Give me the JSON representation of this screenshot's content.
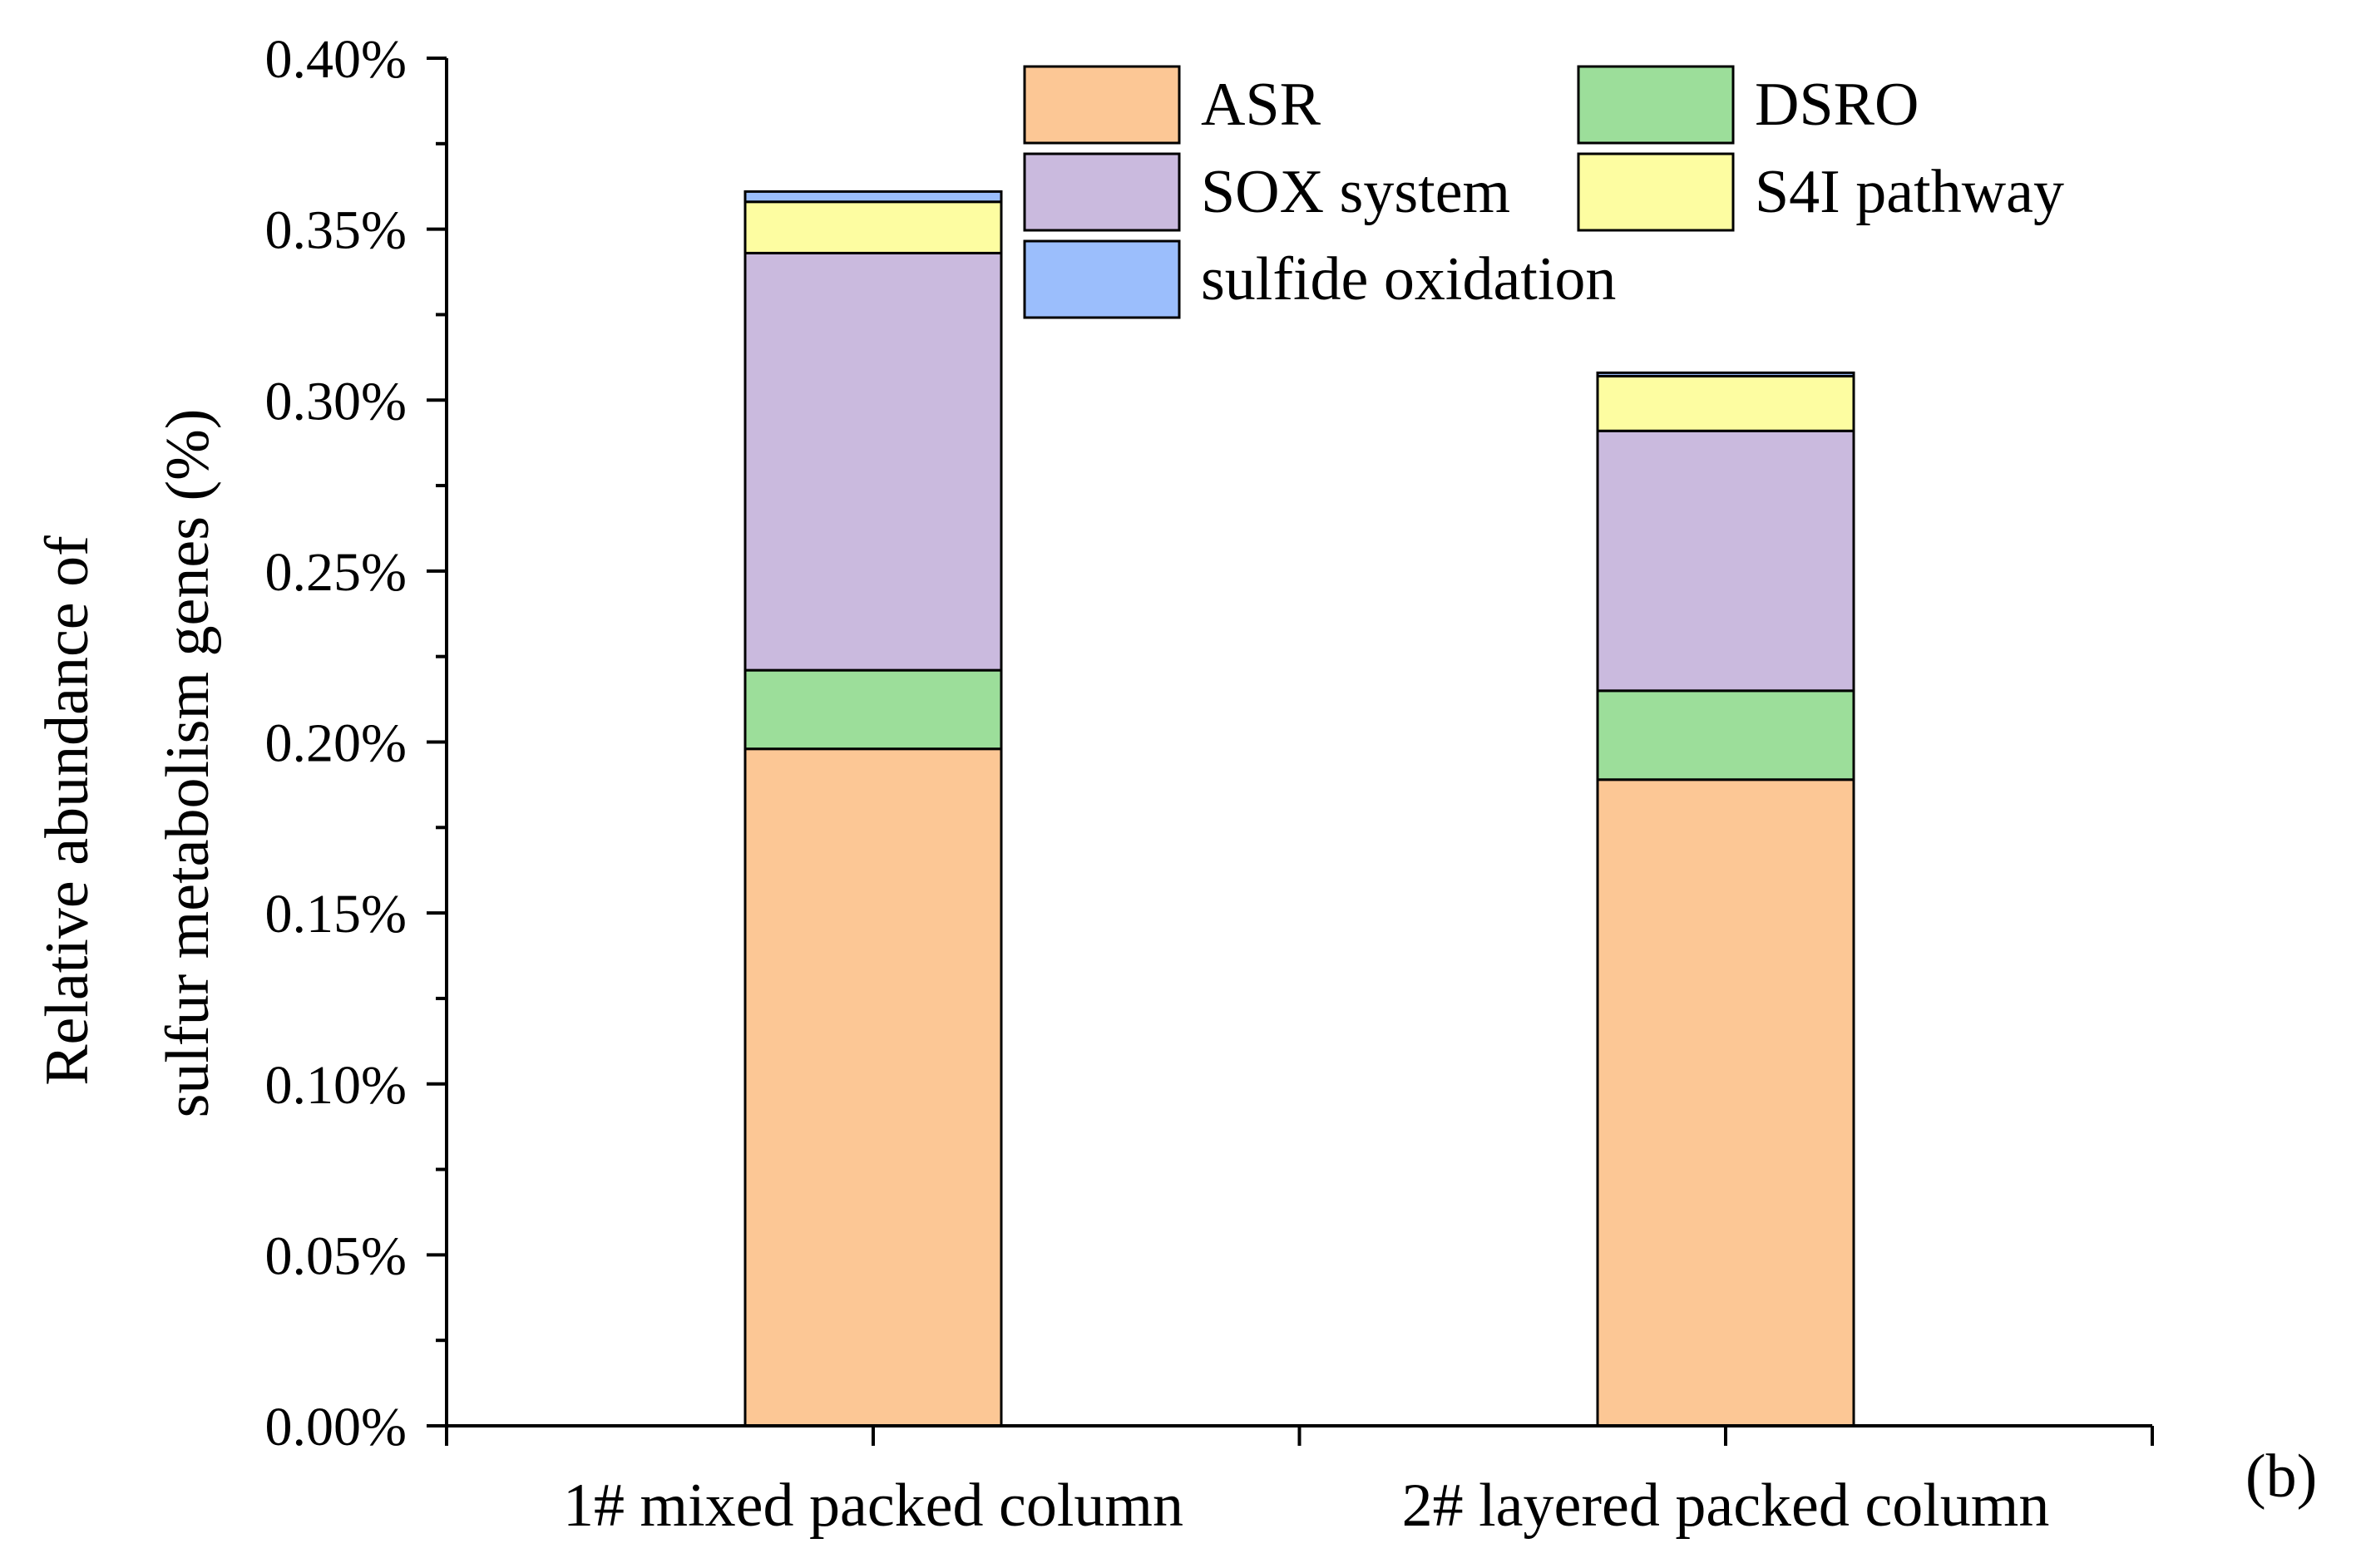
{
  "chart_data": {
    "type": "bar",
    "stacked": true,
    "title": "",
    "xlabel": "",
    "ylabel_lines": [
      "Relative abundance of",
      "sulfur metabolism genes (%)"
    ],
    "ylim": [
      0,
      0.4
    ],
    "y_ticks": [
      0.0,
      0.05,
      0.1,
      0.15,
      0.2,
      0.25,
      0.3,
      0.35,
      0.4
    ],
    "y_tick_labels": [
      "0.00%",
      "0.05%",
      "0.10%",
      "0.15%",
      "0.20%",
      "0.25%",
      "0.30%",
      "0.35%",
      "0.40%"
    ],
    "categories": [
      "1# mixed packed column",
      "2# layered packed column"
    ],
    "series": [
      {
        "name": "ASR",
        "color": "#FCC795",
        "values": [
          0.198,
          0.189
        ]
      },
      {
        "name": "DSRO",
        "color": "#9CDE9A",
        "values": [
          0.023,
          0.026
        ]
      },
      {
        "name": "SOX system",
        "color": "#CABADE",
        "values": [
          0.122,
          0.076
        ]
      },
      {
        "name": "S4I pathway",
        "color": "#FDFDA1",
        "values": [
          0.015,
          0.016
        ]
      },
      {
        "name": "sulfide oxidation",
        "color": "#9BBEFC",
        "values": [
          0.003,
          0.001
        ]
      }
    ],
    "legend_position": "top",
    "panel_label": "(b)"
  }
}
